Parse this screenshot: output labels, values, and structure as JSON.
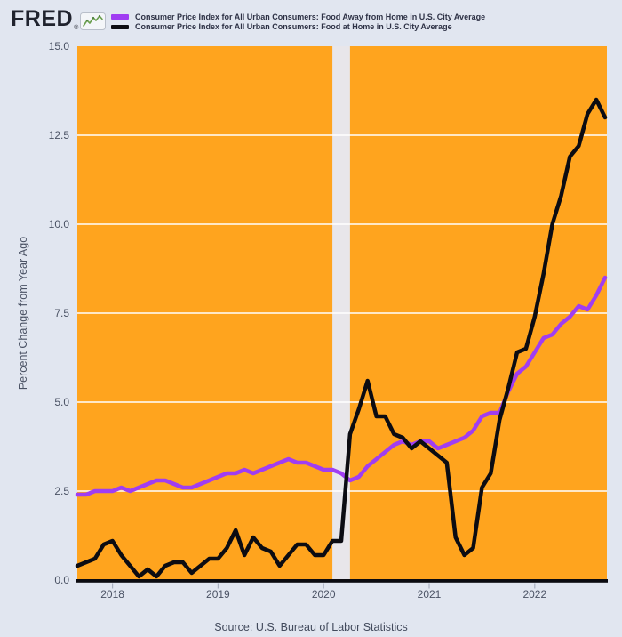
{
  "header": {
    "logo_text": "FRED",
    "logo_reg": "®"
  },
  "legend": [
    {
      "label": "Consumer Price Index for All Urban Consumers: Food Away from Home in U.S. City Average",
      "color": "#a03df2"
    },
    {
      "label": "Consumer Price Index for All Urban Consumers: Food at Home in U.S. City Average",
      "color": "#0c0c12"
    }
  ],
  "footer": {
    "source": "Source: U.S. Bureau of Labor Statistics"
  },
  "colors": {
    "page_bg": "#e1e6f0",
    "plot_bg": "#ffa41e",
    "grid": "#ffffff",
    "axis": "#0b0b10",
    "tick": "#a9b0c0",
    "recession_band": "#e8e6ea"
  },
  "chart_data": {
    "type": "line",
    "title": "",
    "xlabel": "",
    "ylabel": "Percent Change from Year Ago",
    "ylim": [
      0,
      15
    ],
    "grid": true,
    "legend_position": "top-left",
    "y_tick_labels": [
      "15.0",
      "12.5",
      "10.0",
      "7.5",
      "5.0",
      "2.5",
      "0.0"
    ],
    "x_tick_labels": [
      "2018",
      "2019",
      "2020",
      "2021",
      "2022"
    ],
    "recession_band": {
      "start": "2020-02",
      "end": "2020-04"
    },
    "months": [
      "2017-09",
      "2017-10",
      "2017-11",
      "2017-12",
      "2018-01",
      "2018-02",
      "2018-03",
      "2018-04",
      "2018-05",
      "2018-06",
      "2018-07",
      "2018-08",
      "2018-09",
      "2018-10",
      "2018-11",
      "2018-12",
      "2019-01",
      "2019-02",
      "2019-03",
      "2019-04",
      "2019-05",
      "2019-06",
      "2019-07",
      "2019-08",
      "2019-09",
      "2019-10",
      "2019-11",
      "2019-12",
      "2020-01",
      "2020-02",
      "2020-03",
      "2020-04",
      "2020-05",
      "2020-06",
      "2020-07",
      "2020-08",
      "2020-09",
      "2020-10",
      "2020-11",
      "2020-12",
      "2021-01",
      "2021-02",
      "2021-03",
      "2021-04",
      "2021-05",
      "2021-06",
      "2021-07",
      "2021-08",
      "2021-09",
      "2021-10",
      "2021-11",
      "2021-12",
      "2022-01",
      "2022-02",
      "2022-03",
      "2022-04",
      "2022-05",
      "2022-06",
      "2022-07",
      "2022-08",
      "2022-09"
    ],
    "series": [
      {
        "name": "Consumer Price Index for All Urban Consumers: Food Away from Home in U.S. City Average",
        "color": "#a03df2",
        "values": [
          2.4,
          2.4,
          2.5,
          2.5,
          2.5,
          2.6,
          2.5,
          2.6,
          2.7,
          2.8,
          2.8,
          2.7,
          2.6,
          2.6,
          2.7,
          2.8,
          2.9,
          3.0,
          3.0,
          3.1,
          3.0,
          3.1,
          3.2,
          3.3,
          3.4,
          3.3,
          3.3,
          3.2,
          3.1,
          3.1,
          3.0,
          2.8,
          2.9,
          3.2,
          3.4,
          3.6,
          3.8,
          3.9,
          3.8,
          3.9,
          3.9,
          3.7,
          3.8,
          3.9,
          4.0,
          4.2,
          4.6,
          4.7,
          4.7,
          5.3,
          5.8,
          6.0,
          6.4,
          6.8,
          6.9,
          7.2,
          7.4,
          7.7,
          7.6,
          8.0,
          8.5
        ]
      },
      {
        "name": "Consumer Price Index for All Urban Consumers: Food at Home in U.S. City Average",
        "color": "#0c0c12",
        "values": [
          0.4,
          0.5,
          0.6,
          1.0,
          1.1,
          0.7,
          0.4,
          0.1,
          0.3,
          0.1,
          0.4,
          0.5,
          0.5,
          0.2,
          0.4,
          0.6,
          0.6,
          0.9,
          1.4,
          0.7,
          1.2,
          0.9,
          0.8,
          0.4,
          0.7,
          1.0,
          1.0,
          0.7,
          0.7,
          1.1,
          1.1,
          4.1,
          4.8,
          5.6,
          4.6,
          4.6,
          4.1,
          4.0,
          3.7,
          3.9,
          3.7,
          3.5,
          3.3,
          1.2,
          0.7,
          0.9,
          2.6,
          3.0,
          4.5,
          5.4,
          6.4,
          6.5,
          7.4,
          8.6,
          10.0,
          10.8,
          11.9,
          12.2,
          13.1,
          13.5,
          13.0
        ]
      }
    ]
  }
}
